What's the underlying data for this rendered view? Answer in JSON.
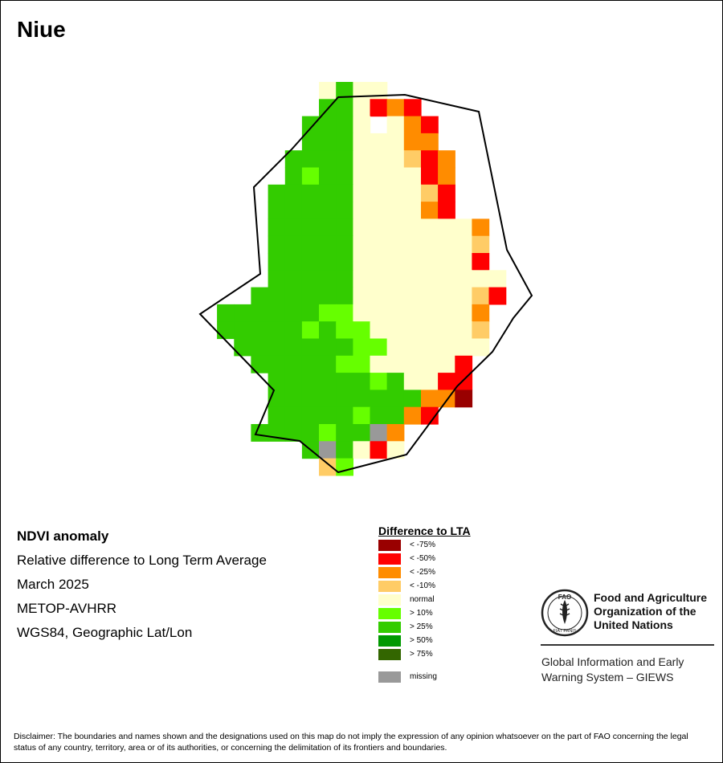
{
  "map": {
    "title": "Niue"
  },
  "info": {
    "title": "NDVI anomaly",
    "lines": [
      "Relative difference to Long Term Average",
      "March 2025",
      "METOP-AVHRR",
      "WGS84, Geographic Lat/Lon"
    ]
  },
  "legend": {
    "title": "Difference to LTA",
    "items": [
      {
        "key": "a",
        "label": "< -75%",
        "color": "#990000"
      },
      {
        "key": "b",
        "label": "< -50%",
        "color": "#ff0000"
      },
      {
        "key": "c",
        "label": "< -25%",
        "color": "#ff8c00"
      },
      {
        "key": "d",
        "label": "< -10%",
        "color": "#ffcc66"
      },
      {
        "key": "e",
        "label": "normal",
        "color": "#ffffcc"
      },
      {
        "key": "f",
        "label": "> 10%",
        "color": "#66ff00"
      },
      {
        "key": "g",
        "label": "> 25%",
        "color": "#33cc00"
      },
      {
        "key": "h",
        "label": "> 50%",
        "color": "#009900"
      },
      {
        "key": "i",
        "label": "> 75%",
        "color": "#336600"
      },
      {
        "key": "m",
        "label": "missing",
        "color": "#999999"
      }
    ]
  },
  "grid_rows": [
    ".......egee.......",
    ".......ggebcb.....",
    "......ggge.ecb....",
    "......gggeeecc....",
    ".....ggggeeedbc...",
    ".....gfggeeeebc...",
    "....gggggeeeedb...",
    "....gggggeeeecb...",
    "....gggggeeeeeeec.",
    "....gggggeeeeeeed.",
    "....gggggeeeeeeeb.",
    "....gggggeeeeeeeee",
    "...ggggggeeeeeeedb",
    ".ggggggffeeeeeeec.",
    ".gggggfgffeeeeeed.",
    "..gggggggffeeeeee.",
    "...gggggffeeeeeb..",
    "....ggggggfgeebb..",
    "....gggggggggcca..",
    "....gggggfggcb....",
    "...ggggfggmc......",
    "......gmgebe......",
    ".......df........."
  ],
  "fao": {
    "name_lines": [
      "Food and Agriculture",
      "Organization of the",
      "United Nations"
    ],
    "emblem_letters": "FAO",
    "emblem_motto": "FIAT PANIS",
    "giews_lines": [
      "Global Information and Early",
      "Warning System – GIEWS"
    ]
  },
  "disclaimer": "Disclaimer: The boundaries and names shown and the designations used on this map do not imply the expression of any opinion whatsoever on the part of FAO concerning the legal status of any country, territory, area or of its authorities, or concerning the delimitation of its frontiers and boundaries."
}
